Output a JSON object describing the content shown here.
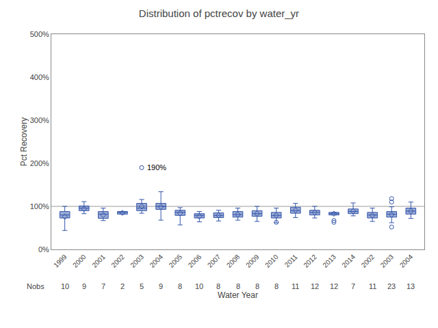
{
  "chart_data": {
    "type": "box",
    "title": "Distribution of pctrecov by water_yr",
    "x_label": "Water Year",
    "y_label": "Pct Recovery",
    "categories": [
      "1999",
      "2000",
      "2001",
      "2002",
      "2003",
      "2004",
      "2005",
      "2006",
      "2007",
      "2008",
      "2009",
      "2010",
      "2011",
      "2012",
      "2013",
      "2014",
      "2002",
      "2003",
      "2004"
    ],
    "boxes": [
      {
        "q1": 73,
        "median": 80,
        "q3": 88,
        "whislo": 44,
        "whishi": 100,
        "mean": 76,
        "fliers": []
      },
      {
        "q1": 90,
        "median": 96,
        "q3": 101,
        "whislo": 83,
        "whishi": 111,
        "mean": 94,
        "fliers": []
      },
      {
        "q1": 72,
        "median": 82,
        "q3": 88,
        "whislo": 67,
        "whishi": 96,
        "mean": 80,
        "fliers": []
      },
      {
        "q1": 82,
        "median": 86,
        "q3": 88,
        "whislo": 82,
        "whishi": 88,
        "mean": 85,
        "fliers": []
      },
      {
        "q1": 90,
        "median": 96,
        "q3": 107,
        "whislo": 84,
        "whishi": 116,
        "mean": 100,
        "fliers": [
          190
        ]
      },
      {
        "q1": 93,
        "median": 100,
        "q3": 107,
        "whislo": 68,
        "whishi": 134,
        "mean": 99,
        "fliers": []
      },
      {
        "q1": 79,
        "median": 86,
        "q3": 91,
        "whislo": 57,
        "whishi": 97,
        "mean": 84,
        "fliers": []
      },
      {
        "q1": 73,
        "median": 79,
        "q3": 83,
        "whislo": 64,
        "whishi": 88,
        "mean": 77,
        "fliers": []
      },
      {
        "q1": 74,
        "median": 79,
        "q3": 85,
        "whislo": 66,
        "whishi": 91,
        "mean": 79,
        "fliers": []
      },
      {
        "q1": 75,
        "median": 81,
        "q3": 88,
        "whislo": 68,
        "whishi": 96,
        "mean": 81,
        "fliers": []
      },
      {
        "q1": 77,
        "median": 83,
        "q3": 90,
        "whislo": 65,
        "whishi": 100,
        "mean": 83,
        "fliers": []
      },
      {
        "q1": 73,
        "median": 79,
        "q3": 86,
        "whislo": 62,
        "whishi": 96,
        "mean": 79,
        "fliers": [
          63
        ]
      },
      {
        "q1": 84,
        "median": 90,
        "q3": 98,
        "whislo": 74,
        "whishi": 107,
        "mean": 91,
        "fliers": []
      },
      {
        "q1": 80,
        "median": 86,
        "q3": 91,
        "whislo": 73,
        "whishi": 100,
        "mean": 86,
        "fliers": []
      },
      {
        "q1": 80,
        "median": 83,
        "q3": 86,
        "whislo": 80,
        "whishi": 86,
        "mean": 83,
        "fliers": [
          63,
          67
        ]
      },
      {
        "q1": 83,
        "median": 88,
        "q3": 94,
        "whislo": 78,
        "whishi": 108,
        "mean": 89,
        "fliers": []
      },
      {
        "q1": 73,
        "median": 80,
        "q3": 86,
        "whislo": 65,
        "whishi": 96,
        "mean": 79,
        "fliers": []
      },
      {
        "q1": 75,
        "median": 82,
        "q3": 88,
        "whislo": 62,
        "whishi": 99,
        "mean": 81,
        "fliers": [
          110,
          118,
          52
        ]
      },
      {
        "q1": 82,
        "median": 89,
        "q3": 96,
        "whislo": 72,
        "whishi": 110,
        "mean": 89,
        "fliers": []
      }
    ],
    "nobs_label": "Nobs",
    "nobs": [
      10,
      9,
      7,
      2,
      5,
      9,
      8,
      10,
      8,
      8,
      8,
      8,
      11,
      12,
      12,
      7,
      11,
      23,
      13
    ],
    "reference_line": {
      "y": 100,
      "color": "#999999"
    },
    "annotations": [
      {
        "text": "190%",
        "box": 4,
        "y": 190
      }
    ],
    "color": "#3355aa",
    "ylim": [
      0,
      500
    ],
    "yticks": [
      {
        "value": 0,
        "label": "0%"
      },
      {
        "value": 100,
        "label": "100%"
      },
      {
        "value": 200,
        "label": "200%"
      },
      {
        "value": 300,
        "label": "300%"
      },
      {
        "value": 400,
        "label": "400%"
      },
      {
        "value": 500,
        "label": "500%"
      }
    ],
    "grid": false
  }
}
